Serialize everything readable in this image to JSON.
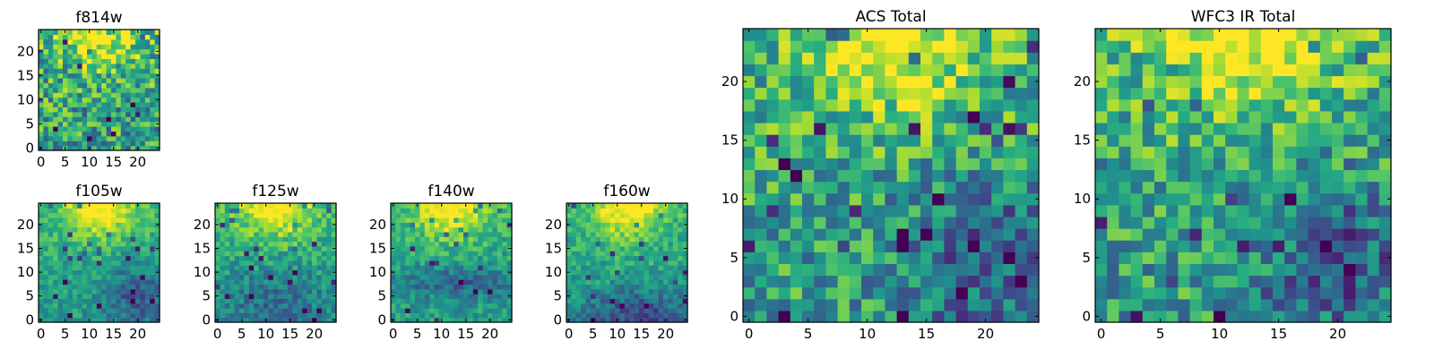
{
  "chart_data": [
    {
      "type": "heatmap",
      "title": "f814w",
      "colormap": "viridis",
      "grid_size": 25,
      "xlim": [
        -0.5,
        24.5
      ],
      "ylim": [
        -0.5,
        24.5
      ],
      "x_ticks": [
        0,
        5,
        10,
        15,
        20
      ],
      "y_ticks": [
        0,
        5,
        10,
        15,
        20
      ],
      "bright_region": "top-center",
      "dark_region": "random pixels",
      "seed": 11,
      "noise": 0.3
    },
    {
      "type": "heatmap",
      "title": "f105w",
      "colormap": "viridis",
      "grid_size": 25,
      "xlim": [
        -0.5,
        24.5
      ],
      "ylim": [
        -0.5,
        24.5
      ],
      "x_ticks": [
        0,
        5,
        10,
        15,
        20
      ],
      "y_ticks": [
        0,
        5,
        10,
        15,
        20
      ],
      "bright_region": "top-center",
      "dark_region": "lower-right",
      "seed": 23,
      "noise": 0.14
    },
    {
      "type": "heatmap",
      "title": "f125w",
      "colormap": "viridis",
      "grid_size": 25,
      "xlim": [
        -0.5,
        24.5
      ],
      "ylim": [
        -0.5,
        24.5
      ],
      "x_ticks": [
        0,
        5,
        10,
        15,
        20
      ],
      "y_ticks": [
        0,
        5,
        10,
        15,
        20
      ],
      "bright_region": "top-center",
      "dark_region": "lower-half",
      "seed": 37,
      "noise": 0.16
    },
    {
      "type": "heatmap",
      "title": "f140w",
      "colormap": "viridis",
      "grid_size": 25,
      "xlim": [
        -0.5,
        24.5
      ],
      "ylim": [
        -0.5,
        24.5
      ],
      "x_ticks": [
        0,
        5,
        10,
        15,
        20
      ],
      "y_ticks": [
        0,
        5,
        10,
        15,
        20
      ],
      "bright_region": "top-center",
      "dark_region": "middle band",
      "seed": 41,
      "noise": 0.14
    },
    {
      "type": "heatmap",
      "title": "f160w",
      "colormap": "viridis",
      "grid_size": 25,
      "xlim": [
        -0.5,
        24.5
      ],
      "ylim": [
        -0.5,
        24.5
      ],
      "x_ticks": [
        0,
        5,
        10,
        15,
        20
      ],
      "y_ticks": [
        0,
        5,
        10,
        15,
        20
      ],
      "bright_region": "top-center",
      "dark_region": "bottom",
      "seed": 53,
      "noise": 0.14
    },
    {
      "type": "heatmap",
      "title": "ACS Total",
      "colormap": "viridis",
      "grid_size": 25,
      "xlim": [
        -0.5,
        24.5
      ],
      "ylim": [
        -0.5,
        24.5
      ],
      "x_ticks": [
        0,
        5,
        10,
        15,
        20
      ],
      "y_ticks": [
        0,
        5,
        10,
        15,
        20
      ],
      "bright_region": "top-center",
      "dark_region": "lower-right",
      "seed": 67,
      "noise": 0.26
    },
    {
      "type": "heatmap",
      "title": "WFC3 IR Total",
      "colormap": "viridis",
      "grid_size": 25,
      "xlim": [
        -0.5,
        24.5
      ],
      "ylim": [
        -0.5,
        24.5
      ],
      "x_ticks": [
        0,
        5,
        10,
        15,
        20
      ],
      "y_ticks": [
        0,
        5,
        10,
        15,
        20
      ],
      "bright_region": "top-center",
      "dark_region": "lower-right",
      "seed": 79,
      "noise": 0.26
    }
  ]
}
